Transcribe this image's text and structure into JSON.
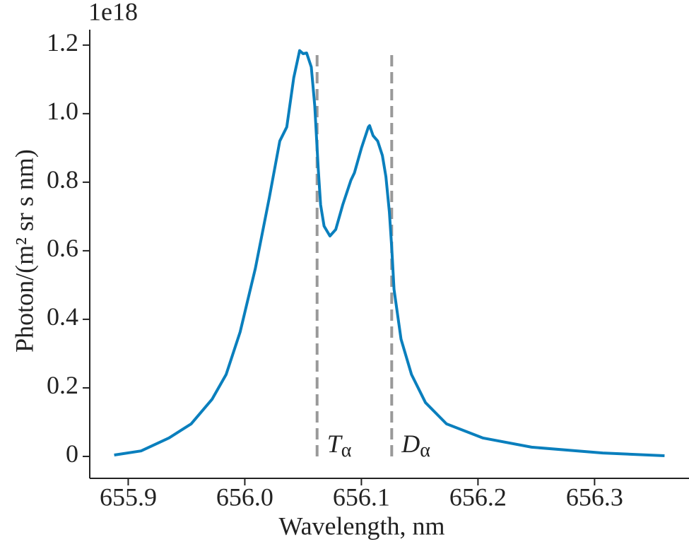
{
  "chart_data": {
    "type": "line",
    "offset_label": "1e18",
    "x_label": "Wavelength, nm",
    "y_label": "Photon/(m² sr s nm)",
    "color": "#0a7fbd",
    "x": [
      655.888,
      655.911,
      655.935,
      655.954,
      655.972,
      655.984,
      655.996,
      656.009,
      656.021,
      656.03,
      656.036,
      656.042,
      656.047,
      656.05,
      656.053,
      656.057,
      656.06,
      656.063,
      656.065,
      656.068,
      656.073,
      656.078,
      656.084,
      656.091,
      656.094,
      656.1,
      656.106,
      656.107,
      656.11,
      656.114,
      656.118,
      656.121,
      656.124,
      656.126,
      656.128,
      656.134,
      656.143,
      656.155,
      656.173,
      656.204,
      656.246,
      656.307,
      656.36
    ],
    "values": [
      0.004,
      0.016,
      0.054,
      0.095,
      0.167,
      0.239,
      0.363,
      0.548,
      0.755,
      0.92,
      0.961,
      1.105,
      1.184,
      1.175,
      1.177,
      1.136,
      1.023,
      0.837,
      0.734,
      0.672,
      0.643,
      0.662,
      0.734,
      0.806,
      0.827,
      0.899,
      0.961,
      0.965,
      0.936,
      0.92,
      0.878,
      0.816,
      0.713,
      0.61,
      0.487,
      0.342,
      0.239,
      0.157,
      0.095,
      0.054,
      0.027,
      0.01,
      0.002
    ],
    "xlim": [
      655.867,
      656.381
    ],
    "ylim": [
      -0.064,
      1.245
    ],
    "xticks": [
      655.9,
      {
        "value": 656,
        "label": "656.0"
      },
      656.1,
      656.2,
      656.3
    ],
    "yticks": [
      0,
      0.2,
      0.4,
      0.6,
      0.8,
      {
        "value": 1,
        "label": "1.0"
      },
      1.2
    ],
    "annotations": [
      {
        "x": 656.062,
        "y": [
          0,
          1.18
        ],
        "label": "T",
        "subscript": "α",
        "color": "#999999"
      },
      {
        "x": 656.126,
        "y": [
          0,
          1.18
        ],
        "label": "D",
        "subscript": "α",
        "color": "#999999"
      }
    ]
  }
}
